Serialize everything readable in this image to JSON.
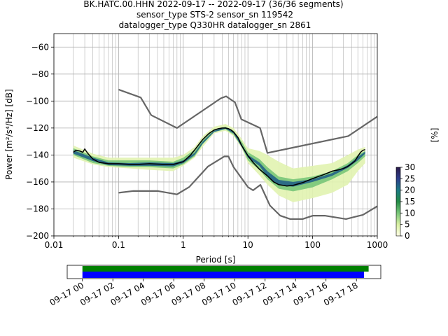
{
  "chart_data": {
    "type": "ppsd",
    "title_lines": [
      "BK.HATC.00.HHN   2022-09-17 -- 2022-09-17  (36/36 segments)",
      "sensor_type STS-2 sensor_sn 119542",
      "datalogger_type Q330HR datalogger_sn 2861"
    ],
    "xlabel": "Period [s]",
    "ylabel": "Power [m²/s⁴/Hz] [dB]",
    "x_scale": "log",
    "xlim": [
      0.01,
      1000
    ],
    "ylim": [
      -200,
      -50
    ],
    "x_ticks": [
      {
        "value": 0.01,
        "label": "0.01"
      },
      {
        "value": 0.1,
        "label": "0.1"
      },
      {
        "value": 1,
        "label": "1"
      },
      {
        "value": 10,
        "label": "10"
      },
      {
        "value": 100,
        "label": "100"
      },
      {
        "value": 1000,
        "label": "1000"
      }
    ],
    "y_ticks": [
      {
        "value": -60,
        "label": "−60"
      },
      {
        "value": -80,
        "label": "−80"
      },
      {
        "value": -100,
        "label": "−100"
      },
      {
        "value": -120,
        "label": "−120"
      },
      {
        "value": -140,
        "label": "−140"
      },
      {
        "value": -160,
        "label": "−160"
      },
      {
        "value": -180,
        "label": "−180"
      },
      {
        "value": -200,
        "label": "−200"
      }
    ],
    "grid": true,
    "colorbar": {
      "label": "[%]",
      "range": [
        0,
        30
      ],
      "ticks": [
        {
          "value": 0,
          "label": "0"
        },
        {
          "value": 5,
          "label": "5"
        },
        {
          "value": 10,
          "label": "10"
        },
        {
          "value": 15,
          "label": "15"
        },
        {
          "value": 20,
          "label": "20"
        },
        {
          "value": 25,
          "label": "25"
        },
        {
          "value": 30,
          "label": "30"
        }
      ],
      "stops": [
        "#ffffe5",
        "#d9f0a3",
        "#78c679",
        "#238b45",
        "#1b7a83",
        "#2c3e8c",
        "#2b1a4a"
      ]
    },
    "nhnm": {
      "x": [
        0.1,
        0.22,
        0.32,
        0.8,
        3.8,
        4.6,
        6.3,
        7.9,
        15.4,
        20,
        354.8,
        1000
      ],
      "y": [
        -91.5,
        -97.4,
        -110.5,
        -120.0,
        -98.0,
        -96.5,
        -101.0,
        -113.5,
        -120.0,
        -138.5,
        -126.0,
        -111.5
      ]
    },
    "nlnm": {
      "x": [
        0.1,
        0.17,
        0.4,
        0.8,
        1.24,
        2.4,
        4.3,
        5.0,
        6.0,
        10.0,
        12.0,
        15.6,
        21.9,
        31.6,
        45.0,
        70.0,
        101.0,
        154.0,
        328.0,
        600.0,
        1000.0
      ],
      "y": [
        -168.0,
        -166.7,
        -166.7,
        -169.2,
        -163.7,
        -148.6,
        -141.1,
        -141.1,
        -149.0,
        -163.8,
        -166.2,
        -162.1,
        -177.5,
        -185.0,
        -187.5,
        -187.5,
        -185.0,
        -185.0,
        -187.5,
        -184.4,
        -178.0
      ]
    },
    "median": {
      "x": [
        0.02,
        0.022,
        0.025,
        0.028,
        0.03,
        0.033,
        0.04,
        0.05,
        0.07,
        0.1,
        0.15,
        0.2,
        0.3,
        0.5,
        0.7,
        1.0,
        1.3,
        1.6,
        2.0,
        2.5,
        3.0,
        3.5,
        4.0,
        4.5,
        5.0,
        5.5,
        6.0,
        7.0,
        8.0,
        10.0,
        12.0,
        15.0,
        20.0,
        25.0,
        30.0,
        40.0,
        50.0,
        70.0,
        100.0,
        150.0,
        200.0,
        250.0,
        300.0,
        350.0,
        400.0,
        450.0,
        500.0,
        550.0,
        600.0,
        650.0
      ],
      "y": [
        -138.0,
        -136.5,
        -137.0,
        -138.0,
        -135.5,
        -138.5,
        -143.0,
        -145.5,
        -146.5,
        -146.5,
        -147.0,
        -147.0,
        -146.5,
        -147.0,
        -147.0,
        -145.0,
        -140.0,
        -134.5,
        -128.5,
        -124.0,
        -121.5,
        -120.5,
        -120.0,
        -120.0,
        -120.5,
        -121.5,
        -123.0,
        -127.0,
        -133.0,
        -140.5,
        -145.5,
        -150.5,
        -155.5,
        -160.0,
        -162.0,
        -163.0,
        -162.5,
        -160.5,
        -157.5,
        -154.5,
        -152.0,
        -151.0,
        -150.0,
        -148.5,
        -146.5,
        -144.5,
        -141.0,
        -138.0,
        -136.5,
        -136.0
      ]
    },
    "density_bands": [
      {
        "x": [
          0.02,
          0.04,
          0.07,
          0.15,
          0.3,
          0.7,
          1.0,
          1.5,
          2.0,
          3.0,
          4.5,
          6.0,
          8.0,
          10.0,
          15.0,
          20.0,
          30.0,
          50.0,
          100.0,
          200.0,
          350.0,
          500.0,
          650.0
        ],
        "upper": [
          -133,
          -139,
          -142,
          -142,
          -142,
          -142,
          -140,
          -134,
          -126,
          -119,
          -117,
          -120,
          -128,
          -135,
          -137,
          -140,
          -145,
          -150,
          -148,
          -146,
          -140,
          -136,
          -134
        ],
        "lower": [
          -142,
          -147,
          -149,
          -150,
          -151,
          -152,
          -148,
          -142,
          -134,
          -124,
          -122,
          -126,
          -135,
          -146,
          -155,
          -162,
          -170,
          -175,
          -172,
          -168,
          -162,
          -152,
          -146
        ],
        "level": 4
      },
      {
        "x": [
          0.02,
          0.04,
          0.07,
          0.15,
          0.3,
          0.7,
          1.0,
          1.5,
          2.0,
          3.0,
          4.5,
          6.0,
          8.0,
          10.0,
          15.0,
          20.0,
          30.0,
          50.0,
          100.0,
          200.0,
          350.0,
          500.0,
          650.0
        ],
        "upper": [
          -135,
          -141,
          -144,
          -144,
          -144,
          -145,
          -142,
          -136,
          -129,
          -121,
          -119,
          -122,
          -130,
          -138,
          -143,
          -149,
          -156,
          -158,
          -156,
          -152,
          -146,
          -140,
          -137
        ],
        "lower": [
          -140,
          -146,
          -148,
          -149,
          -149,
          -150,
          -147,
          -141,
          -132,
          -123,
          -121,
          -125,
          -134,
          -144,
          -151,
          -158,
          -165,
          -167,
          -164,
          -158,
          -152,
          -146,
          -141
        ],
        "level": 10
      },
      {
        "x": [
          0.02,
          0.04,
          0.07,
          0.15,
          0.3,
          0.7,
          1.0,
          1.5,
          2.0,
          3.0,
          4.5,
          6.0,
          8.0,
          10.0,
          15.0,
          20.0,
          30.0,
          50.0,
          100.0,
          200.0,
          350.0,
          500.0,
          650.0
        ],
        "upper": [
          -136.5,
          -142,
          -145.5,
          -146,
          -145.5,
          -146,
          -144,
          -138.5,
          -130,
          -122,
          -119.5,
          -122.5,
          -132,
          -140,
          -145.5,
          -152,
          -158.5,
          -160,
          -158,
          -153.5,
          -147.5,
          -141.5,
          -137.5
        ],
        "lower": [
          -139,
          -144.5,
          -147.5,
          -148,
          -148,
          -148.5,
          -146,
          -140,
          -131.5,
          -123,
          -120.5,
          -124,
          -134,
          -142,
          -148,
          -156,
          -162.5,
          -163.5,
          -160,
          -155.5,
          -149.5,
          -144,
          -139
        ],
        "level": 22
      }
    ]
  },
  "timeline": {
    "tick_labels": [
      "09-17 00",
      "09-17 02",
      "09-17 04",
      "09-17 06",
      "09-17 08",
      "09-17 10",
      "09-17 12",
      "09-17 14",
      "09-17 16",
      "09-17 18"
    ],
    "tick_hours": [
      0,
      2,
      4,
      6,
      8,
      10,
      12,
      14,
      16,
      18
    ],
    "range_hours": [
      -1,
      19.6
    ],
    "bar_green": {
      "start_hour": 0,
      "end_hour": 18.8,
      "color": "#008000"
    },
    "bar_blue": {
      "start_hour": 0,
      "end_hour": 18.5,
      "color": "#0000ff"
    }
  },
  "colors": {
    "noise_model": "#666666",
    "median": "#000000",
    "grid": "#b0b0b0"
  }
}
